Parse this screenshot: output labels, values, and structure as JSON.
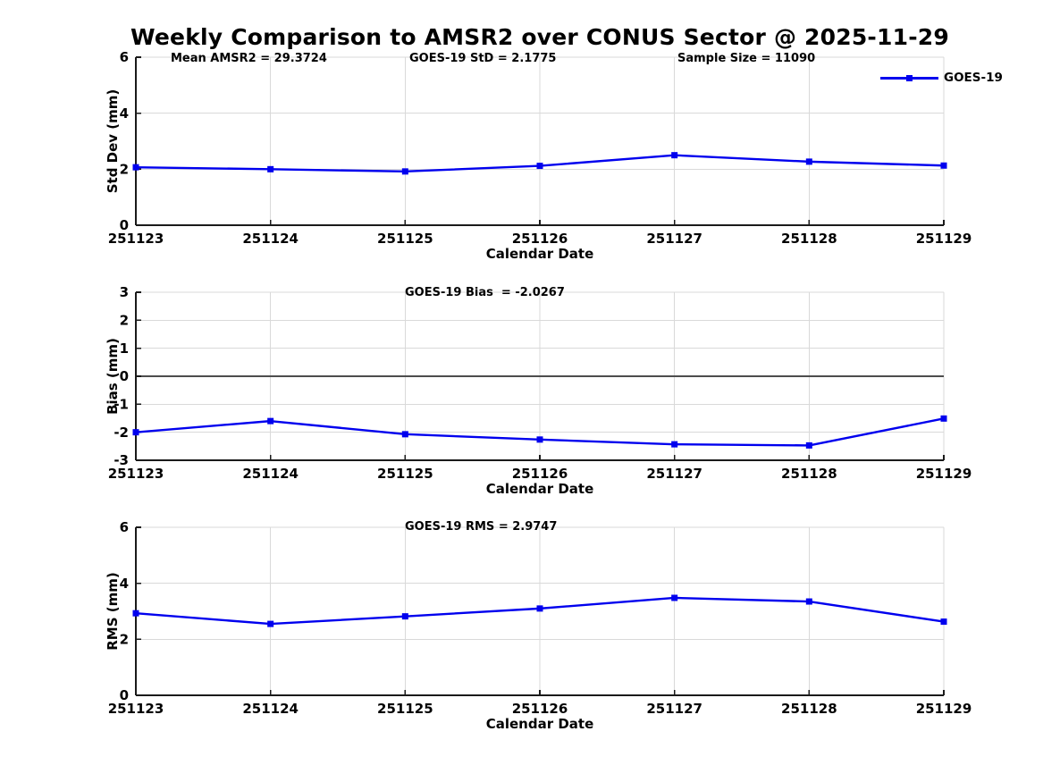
{
  "figure": {
    "title": "Weekly Comparison to AMSR2 over CONUS Sector @ 2025-11-29"
  },
  "palette": {
    "series_blue": "#0000ee",
    "grid": "#d9d9d9",
    "axis": "#1a1a1a",
    "zero_line": "#4d4d4d",
    "text": "#000000",
    "background": "#ffffff"
  },
  "chart_data": [
    {
      "type": "line",
      "ylabel": "Std Dev (mm)",
      "xlabel": "Calendar Date",
      "ylim": [
        0,
        6
      ],
      "yticks": [
        0,
        2,
        4,
        6
      ],
      "grid": true,
      "zero_line": false,
      "legend_position": "top-right",
      "categories": [
        "251123",
        "251124",
        "251125",
        "251126",
        "251127",
        "251128",
        "251129"
      ],
      "series": [
        {
          "name": "GOES-19",
          "values": [
            2.07,
            2.0,
            1.92,
            2.12,
            2.5,
            2.27,
            2.13
          ]
        }
      ],
      "annotations": [
        {
          "text": "Mean AMSR2 = 29.3724"
        },
        {
          "text": "GOES-19 StD = 2.1775"
        },
        {
          "text": "Sample Size = 11090"
        }
      ]
    },
    {
      "type": "line",
      "ylabel": "Bias (mm)",
      "xlabel": "Calendar Date",
      "ylim": [
        -3,
        3
      ],
      "yticks": [
        3,
        2,
        1,
        0,
        -1,
        -2,
        -3
      ],
      "grid": true,
      "zero_line": true,
      "categories": [
        "251123",
        "251124",
        "251125",
        "251126",
        "251127",
        "251128",
        "251129"
      ],
      "series": [
        {
          "name": "GOES-19",
          "values": [
            -2.0,
            -1.6,
            -2.07,
            -2.26,
            -2.43,
            -2.47,
            -1.51
          ]
        }
      ],
      "annotations": [
        {
          "text": "GOES-19 Bias  = -2.0267"
        }
      ]
    },
    {
      "type": "line",
      "ylabel": "RMS (mm)",
      "xlabel": "Calendar Date",
      "ylim": [
        0,
        6
      ],
      "yticks": [
        0,
        2,
        4,
        6
      ],
      "grid": true,
      "zero_line": false,
      "categories": [
        "251123",
        "251124",
        "251125",
        "251126",
        "251127",
        "251128",
        "251129"
      ],
      "series": [
        {
          "name": "GOES-19",
          "values": [
            2.93,
            2.55,
            2.82,
            3.1,
            3.48,
            3.35,
            2.63
          ]
        }
      ],
      "annotations": [
        {
          "text": "GOES-19 RMS = 2.9747"
        }
      ]
    }
  ]
}
